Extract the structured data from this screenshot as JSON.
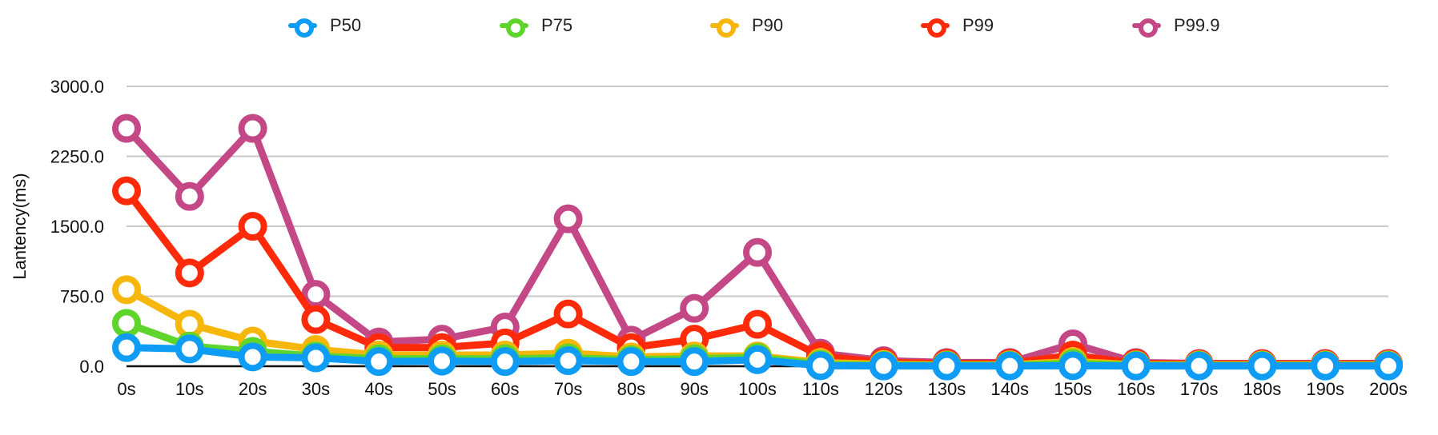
{
  "chart_data": {
    "type": "line",
    "title": "",
    "xlabel": "",
    "ylabel": "Lantency(ms)",
    "categories": [
      "0s",
      "10s",
      "20s",
      "30s",
      "40s",
      "50s",
      "60s",
      "70s",
      "80s",
      "90s",
      "100s",
      "110s",
      "120s",
      "130s",
      "140s",
      "150s",
      "160s",
      "170s",
      "180s",
      "190s",
      "200s"
    ],
    "y_ticks": [
      "0.0",
      "750.0",
      "1500.0",
      "2250.0",
      "3000.0"
    ],
    "ylim": [
      0,
      3000
    ],
    "grid": true,
    "legend_position": "top",
    "series": [
      {
        "name": "P50",
        "color": "#0f9cf5",
        "values": [
          200,
          185,
          100,
          90,
          50,
          55,
          50,
          60,
          50,
          50,
          70,
          5,
          3,
          3,
          3,
          5,
          3,
          3,
          3,
          3,
          3
        ]
      },
      {
        "name": "P75",
        "color": "#5ed52a",
        "values": [
          460,
          215,
          160,
          110,
          80,
          80,
          80,
          90,
          70,
          80,
          95,
          20,
          10,
          10,
          10,
          30,
          10,
          10,
          10,
          10,
          10
        ]
      },
      {
        "name": "P90",
        "color": "#f7b60a",
        "values": [
          820,
          450,
          270,
          180,
          120,
          120,
          120,
          140,
          100,
          110,
          110,
          40,
          20,
          15,
          15,
          50,
          15,
          15,
          15,
          15,
          15
        ]
      },
      {
        "name": "P99",
        "color": "#ff2a0a",
        "values": [
          1880,
          1000,
          1500,
          500,
          200,
          200,
          250,
          560,
          200,
          290,
          450,
          110,
          40,
          30,
          30,
          120,
          30,
          25,
          25,
          25,
          25
        ]
      },
      {
        "name": "P99.9",
        "color": "#c54886",
        "values": [
          2550,
          1820,
          2550,
          770,
          260,
          290,
          420,
          1580,
          280,
          620,
          1220,
          140,
          60,
          40,
          40,
          240,
          40,
          30,
          30,
          30,
          30
        ]
      }
    ]
  }
}
